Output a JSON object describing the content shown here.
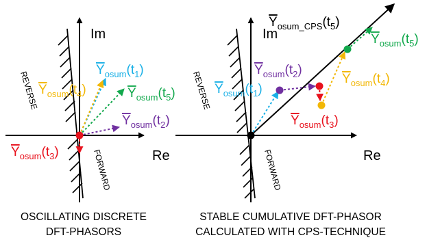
{
  "left_panel": {
    "axis_labels": {
      "re": "Re",
      "im": "Im"
    },
    "region_labels": {
      "reverse": "REVERSE",
      "forward": "FORWARD"
    },
    "phasor_labels": [
      {
        "base": "Y",
        "sub": "osum",
        "arg": "t",
        "idx": "1",
        "color": "#1ab0e6"
      },
      {
        "base": "Y",
        "sub": "osum",
        "arg": "t",
        "idx": "4",
        "color": "#f2b705"
      },
      {
        "base": "Y",
        "sub": "osum",
        "arg": "t",
        "idx": "5",
        "color": "#12a84c"
      },
      {
        "base": "Y",
        "sub": "osum",
        "arg": "t",
        "idx": "2",
        "color": "#7030a0"
      },
      {
        "base": "Y",
        "sub": "osum",
        "arg": "t",
        "idx": "3",
        "color": "#e8121d"
      }
    ],
    "caption_lines": [
      "OSCILLATING DISCRETE",
      "DFT-PHASORS"
    ]
  },
  "right_panel": {
    "axis_labels": {
      "re": "Re",
      "im": "Im"
    },
    "region_labels": {
      "reverse": "REVERSE",
      "forward": "FORWARD"
    },
    "cps_label": {
      "base": "Y",
      "sub": "osum_CPS",
      "arg": "t",
      "idx": "5",
      "color": "#000000"
    },
    "phasor_labels": [
      {
        "base": "Y",
        "sub": "osum",
        "arg": "t",
        "idx": "1",
        "color": "#1ab0e6"
      },
      {
        "base": "Y",
        "sub": "osum",
        "arg": "t",
        "idx": "2",
        "color": "#7030a0"
      },
      {
        "base": "Y",
        "sub": "osum",
        "arg": "t",
        "idx": "3",
        "color": "#e8121d"
      },
      {
        "base": "Y",
        "sub": "osum",
        "arg": "t",
        "idx": "4",
        "color": "#f2b705"
      },
      {
        "base": "Y",
        "sub": "osum",
        "arg": "t",
        "idx": "5",
        "color": "#12a84c"
      }
    ],
    "caption_lines": [
      "STABLE CUMULATIVE DFT-PHASOR",
      "CALCULATED WITH CPS-TECHNIQUE"
    ]
  },
  "colors": {
    "t1": "#1ab0e6",
    "t2": "#7030a0",
    "t3": "#e8121d",
    "t4": "#f2b705",
    "t5": "#12a84c",
    "axis": "#000000"
  }
}
